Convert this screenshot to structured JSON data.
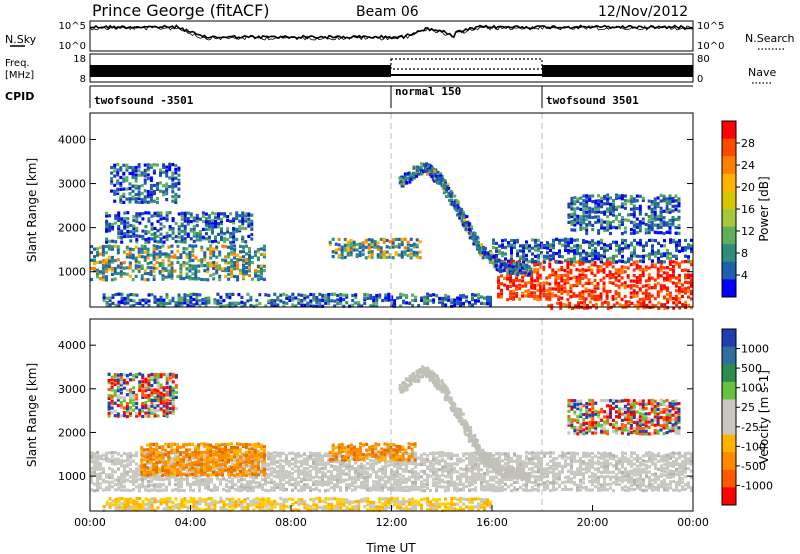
{
  "header": {
    "station": "Prince George (fitACF)",
    "beam": "Beam 06",
    "date": "12/Nov/2012"
  },
  "left_labels": {
    "nsky": "N.Sky",
    "freq_line1": "Freq.",
    "freq_line2": "[MHz]",
    "cpid": "CPID"
  },
  "right_labels": {
    "nsearch": "N.Search",
    "nave": "Nave"
  },
  "noise_panel": {
    "left_ticks": [
      "10^5",
      "10^0"
    ],
    "right_ticks": [
      "10^5",
      "10^0"
    ]
  },
  "freq_panel": {
    "left_ticks": [
      "18",
      "8"
    ],
    "right_ticks": [
      "80",
      "0"
    ]
  },
  "cpid_segments": [
    {
      "label": "twofsound -3501",
      "start_hour": 0
    },
    {
      "label": "normal 150",
      "start_hour": 12
    },
    {
      "label": "twofsound 3501",
      "start_hour": 18
    }
  ],
  "power_colorbar": {
    "label": "Power [dB]",
    "ticks": [
      "28",
      "24",
      "20",
      "16",
      "12",
      "8",
      "4"
    ],
    "colors": [
      "#ff0000",
      "#ff4a00",
      "#ff7f00",
      "#ffb300",
      "#d9c400",
      "#a3c93a",
      "#5fae5a",
      "#2e8c78",
      "#1f5fae",
      "#0000ff"
    ]
  },
  "velocity_colorbar": {
    "label": "Velocity [m s-1]",
    "ticks": [
      "1000",
      "500",
      "100",
      "25",
      "-25",
      "-100",
      "-500",
      "-1000"
    ],
    "colors": [
      "#1f3fae",
      "#2e6ea0",
      "#2d8b4f",
      "#66c23a",
      "#c8c8c0",
      "#c8c8c0",
      "#ffb300",
      "#ff8a00",
      "#ff5a00",
      "#ff0000"
    ]
  },
  "chart_data": [
    {
      "type": "heatmap",
      "panel": "power",
      "ylabel": "Slant Range [km]",
      "xlabel": "",
      "ylim": [
        200,
        4600
      ],
      "xlim": [
        0,
        24
      ],
      "yticks": [
        1000,
        2000,
        3000,
        4000
      ],
      "xticks": [
        "00:00",
        "04:00",
        "08:00",
        "12:00",
        "16:00",
        "20:00",
        "00:00"
      ],
      "bands": [
        {
          "t0": 0.0,
          "t1": 7.0,
          "r0": 850,
          "r1": 1650,
          "level": "mid"
        },
        {
          "t0": 0.6,
          "t1": 6.5,
          "r0": 1700,
          "r1": 2400,
          "level": "low"
        },
        {
          "t0": 0.8,
          "t1": 3.6,
          "r0": 2600,
          "r1": 3500,
          "level": "low"
        },
        {
          "t0": 9.5,
          "t1": 13.2,
          "r0": 1350,
          "r1": 1800,
          "level": "mid"
        },
        {
          "t0": 0.5,
          "t1": 16.0,
          "r0": 250,
          "r1": 550,
          "level": "low"
        },
        {
          "t0": 16.2,
          "t1": 24.0,
          "r0": 400,
          "r1": 1300,
          "level": "high"
        },
        {
          "t0": 16.0,
          "t1": 24.0,
          "r0": 1250,
          "r1": 1800,
          "level": "low"
        },
        {
          "t0": 18.2,
          "t1": 24.0,
          "r0": 200,
          "r1": 380,
          "level": "high"
        },
        {
          "t0": 19.0,
          "t1": 23.5,
          "r0": 1900,
          "r1": 2800,
          "level": "low"
        }
      ],
      "arc": [
        [
          12.3,
          3000
        ],
        [
          13.3,
          3400
        ],
        [
          14.0,
          3000
        ],
        [
          14.8,
          2200
        ],
        [
          15.5,
          1500
        ],
        [
          16.3,
          1100
        ],
        [
          17.5,
          1000
        ]
      ]
    },
    {
      "type": "heatmap",
      "panel": "velocity",
      "ylabel": "Slant Range [km]",
      "xlabel": "Time UT",
      "ylim": [
        200,
        4600
      ],
      "xlim": [
        0,
        24
      ],
      "yticks": [
        1000,
        2000,
        3000,
        4000
      ],
      "xticks": [
        "00:00",
        "04:00",
        "08:00",
        "12:00",
        "16:00",
        "20:00",
        "00:00"
      ],
      "bands": [
        {
          "t0": 0.0,
          "t1": 24.0,
          "r0": 700,
          "r1": 1600,
          "level": "ground"
        },
        {
          "t0": 2.0,
          "t1": 7.0,
          "r0": 1050,
          "r1": 1800,
          "level": "neg"
        },
        {
          "t0": 0.5,
          "t1": 16.0,
          "r0": 250,
          "r1": 550,
          "level": "negsmall"
        },
        {
          "t0": 9.5,
          "t1": 13.0,
          "r0": 1400,
          "r1": 1800,
          "level": "neg"
        },
        {
          "t0": 0.7,
          "t1": 3.5,
          "r0": 2400,
          "r1": 3400,
          "level": "mix"
        },
        {
          "t0": 19.0,
          "t1": 23.5,
          "r0": 2000,
          "r1": 2800,
          "level": "mix"
        }
      ],
      "arc": [
        [
          12.3,
          3000
        ],
        [
          13.3,
          3400
        ],
        [
          14.0,
          3000
        ],
        [
          14.8,
          2200
        ],
        [
          15.5,
          1500
        ],
        [
          16.3,
          1100
        ],
        [
          17.5,
          1000
        ]
      ]
    }
  ],
  "axes": {
    "ylabel": "Slant Range [km]",
    "xlabel": "Time UT"
  }
}
